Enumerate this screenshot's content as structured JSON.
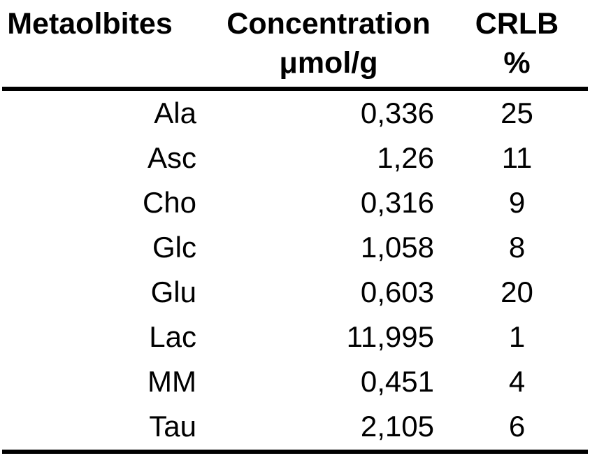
{
  "page": {
    "background_color": "#ffffff",
    "text_color": "#000000"
  },
  "table": {
    "header": {
      "col1_line1": "Metaolbites",
      "col1_line2": "",
      "col2_line1": "Concentration",
      "col2_line2": "μmol/g",
      "col3_line1": "CRLB",
      "col3_line2": "%"
    },
    "rows": [
      {
        "metabolite": "Ala",
        "concentration": "0,336",
        "crlb": "25"
      },
      {
        "metabolite": "Asc",
        "concentration": "1,26",
        "crlb": "11"
      },
      {
        "metabolite": "Cho",
        "concentration": "0,316",
        "crlb": "9"
      },
      {
        "metabolite": "Glc",
        "concentration": "1,058",
        "crlb": "8"
      },
      {
        "metabolite": "Glu",
        "concentration": "0,603",
        "crlb": "20"
      },
      {
        "metabolite": "Lac",
        "concentration": "11,995",
        "crlb": "1"
      },
      {
        "metabolite": "MM",
        "concentration": "0,451",
        "crlb": "4"
      },
      {
        "metabolite": "Tau",
        "concentration": "2,105",
        "crlb": "6"
      }
    ]
  },
  "chart_data": {
    "type": "table",
    "columns": [
      "Metaolbites",
      "Concentration μmol/g",
      "CRLB %"
    ],
    "rows": [
      [
        "Ala",
        "0,336",
        "25"
      ],
      [
        "Asc",
        "1,26",
        "11"
      ],
      [
        "Cho",
        "0,316",
        "9"
      ],
      [
        "Glc",
        "1,058",
        "8"
      ],
      [
        "Glu",
        "0,603",
        "20"
      ],
      [
        "Lac",
        "11,995",
        "1"
      ],
      [
        "MM",
        "0,451",
        "4"
      ],
      [
        "Tau",
        "2,105",
        "6"
      ]
    ]
  }
}
